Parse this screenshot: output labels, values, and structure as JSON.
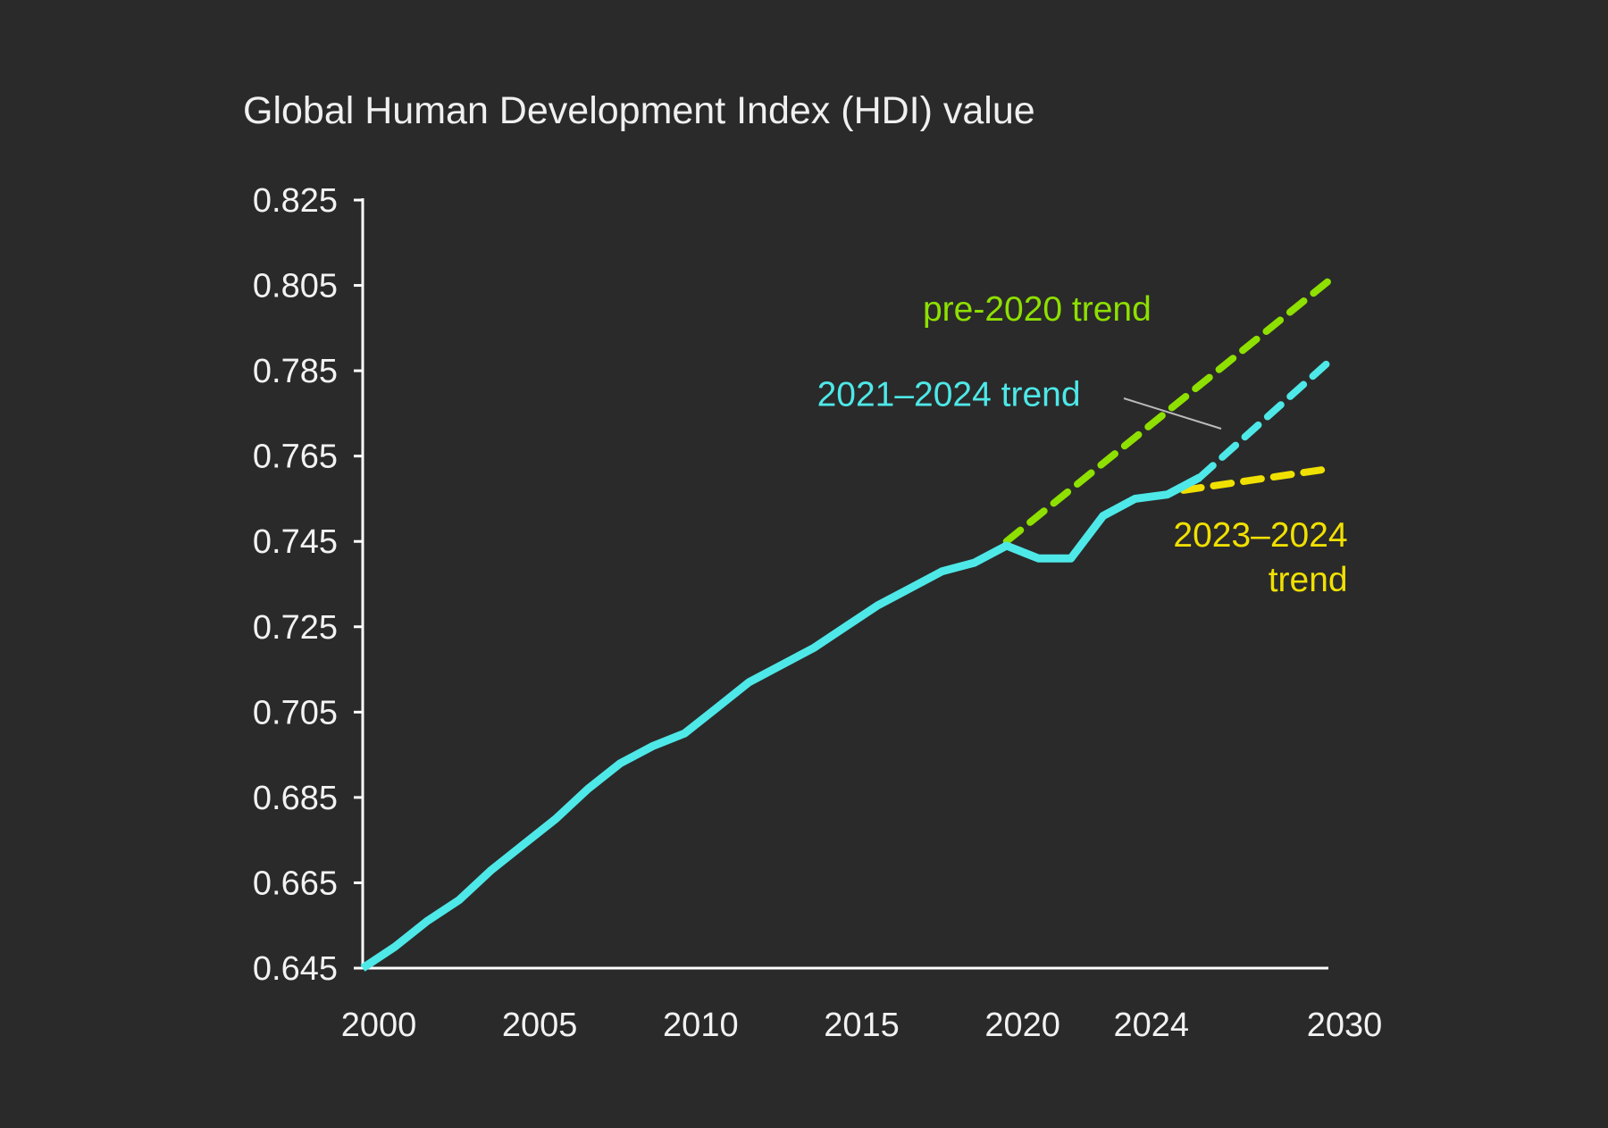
{
  "chart_data": {
    "type": "line",
    "title": "Global Human Development Index (HDI) value",
    "xlabel": "",
    "ylabel": "",
    "xlim": [
      2000,
      2030
    ],
    "ylim": [
      0.645,
      0.825
    ],
    "x_ticks": [
      {
        "value": 2000,
        "label": "2000",
        "highlight": false
      },
      {
        "value": 2005,
        "label": "2005",
        "highlight": false
      },
      {
        "value": 2010,
        "label": "2010",
        "highlight": false
      },
      {
        "value": 2015,
        "label": "2015",
        "highlight": false
      },
      {
        "value": 2020,
        "label": "2020",
        "highlight": false
      },
      {
        "value": 2024,
        "label": "2024",
        "highlight": true
      },
      {
        "value": 2030,
        "label": "2030",
        "highlight": false
      }
    ],
    "y_ticks": [
      {
        "value": 0.825,
        "label": "0.825"
      },
      {
        "value": 0.805,
        "label": "0.805"
      },
      {
        "value": 0.785,
        "label": "0.785"
      },
      {
        "value": 0.765,
        "label": "0.765"
      },
      {
        "value": 0.745,
        "label": "0.745"
      },
      {
        "value": 0.725,
        "label": "0.725"
      },
      {
        "value": 0.705,
        "label": "0.705"
      },
      {
        "value": 0.685,
        "label": "0.685"
      },
      {
        "value": 0.665,
        "label": "0.665"
      },
      {
        "value": 0.645,
        "label": "0.645"
      }
    ],
    "grid": false,
    "series": [
      {
        "key": "hdi",
        "style": "solid",
        "color": "#4ee8e8",
        "points": [
          [
            2000,
            0.645
          ],
          [
            2001,
            0.65
          ],
          [
            2002,
            0.656
          ],
          [
            2003,
            0.661
          ],
          [
            2004,
            0.668
          ],
          [
            2005,
            0.674
          ],
          [
            2006,
            0.68
          ],
          [
            2007,
            0.687
          ],
          [
            2008,
            0.693
          ],
          [
            2009,
            0.697
          ],
          [
            2010,
            0.7
          ],
          [
            2011,
            0.706
          ],
          [
            2012,
            0.712
          ],
          [
            2013,
            0.716
          ],
          [
            2014,
            0.72
          ],
          [
            2015,
            0.725
          ],
          [
            2016,
            0.73
          ],
          [
            2017,
            0.734
          ],
          [
            2018,
            0.738
          ],
          [
            2019,
            0.74
          ],
          [
            2020,
            0.744
          ],
          [
            2021,
            0.741
          ],
          [
            2022,
            0.741
          ],
          [
            2023,
            0.751
          ],
          [
            2024,
            0.755
          ],
          [
            2025,
            0.756
          ],
          [
            2026,
            0.76
          ]
        ]
      },
      {
        "key": "pre2020",
        "name": "pre-2020 trend",
        "style": "dashed",
        "color": "#8ee000",
        "points": [
          [
            2020,
            0.745
          ],
          [
            2030,
            0.806
          ]
        ]
      },
      {
        "key": "trend2124",
        "name": "2021–2024 trend",
        "style": "dashed",
        "color": "#4ee8e8",
        "points": [
          [
            2026,
            0.76
          ],
          [
            2030,
            0.787
          ]
        ]
      },
      {
        "key": "trend2324",
        "name": "2023–2024 trend",
        "style": "dashed",
        "color": "#f0e000",
        "points": [
          [
            2025.5,
            0.757
          ],
          [
            2030,
            0.762
          ]
        ]
      }
    ],
    "annotations": [
      {
        "key": "pre2020_label",
        "text": "pre-2020 trend",
        "color": "#8ee000",
        "x": 2024.5,
        "y": 0.7995
      },
      {
        "key": "trend2124_label",
        "text": "2021–2024 trend",
        "color": "#4ee8e8",
        "x": 2022.3,
        "y": 0.7795
      },
      {
        "key": "trend2324_label_1",
        "text": "2023–2024",
        "color": "#f0e000",
        "x": 2030.6,
        "y": 0.7465
      },
      {
        "key": "trend2324_label_2",
        "text": "trend",
        "color": "#f0e000",
        "x": 2030.6,
        "y": 0.736
      }
    ]
  }
}
